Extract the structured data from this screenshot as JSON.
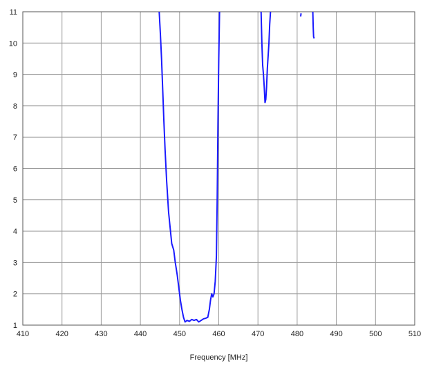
{
  "chart_data": {
    "type": "line",
    "title": "",
    "xlabel": "Frequency [MHz]",
    "ylabel": "",
    "xlim": [
      410,
      510
    ],
    "ylim": [
      1,
      11
    ],
    "xticks": [
      410,
      420,
      430,
      440,
      450,
      460,
      470,
      480,
      490,
      500,
      510
    ],
    "yticks": [
      1,
      2,
      3,
      4,
      5,
      6,
      7,
      8,
      9,
      10,
      11
    ],
    "grid": true,
    "legend": "none",
    "line_color": "#1a1aff",
    "series": [
      {
        "segments": [
          [
            [
              444.8,
              11.0
            ],
            [
              445.1,
              10.3
            ],
            [
              445.4,
              9.5
            ],
            [
              445.7,
              8.5
            ],
            [
              446.0,
              7.5
            ],
            [
              446.3,
              6.6
            ],
            [
              446.7,
              5.6
            ],
            [
              447.2,
              4.6
            ],
            [
              447.6,
              4.1
            ],
            [
              448.0,
              3.6
            ],
            [
              448.5,
              3.4
            ],
            [
              448.9,
              3.0
            ],
            [
              449.4,
              2.6
            ],
            [
              449.8,
              2.2
            ],
            [
              450.2,
              1.8
            ],
            [
              450.6,
              1.5
            ],
            [
              451.0,
              1.25
            ],
            [
              451.4,
              1.1
            ],
            [
              451.9,
              1.15
            ],
            [
              452.5,
              1.12
            ],
            [
              453.1,
              1.18
            ],
            [
              453.7,
              1.15
            ],
            [
              454.3,
              1.18
            ],
            [
              454.9,
              1.1
            ],
            [
              455.5,
              1.15
            ],
            [
              456.1,
              1.2
            ],
            [
              456.7,
              1.22
            ],
            [
              457.2,
              1.25
            ],
            [
              457.6,
              1.5
            ],
            [
              457.9,
              1.8
            ],
            [
              458.2,
              2.0
            ],
            [
              458.5,
              1.9
            ],
            [
              458.8,
              2.0
            ],
            [
              459.1,
              2.4
            ],
            [
              459.4,
              3.2
            ],
            [
              459.6,
              5.0
            ],
            [
              459.8,
              7.5
            ],
            [
              460.0,
              9.5
            ],
            [
              460.2,
              11.0
            ]
          ],
          [
            [
              470.8,
              11.0
            ],
            [
              470.9,
              10.5
            ],
            [
              471.0,
              10.0
            ],
            [
              471.2,
              9.3
            ],
            [
              471.4,
              9.0
            ],
            [
              471.6,
              8.6
            ],
            [
              471.8,
              8.1
            ],
            [
              472.0,
              8.2
            ],
            [
              472.2,
              8.6
            ],
            [
              472.4,
              9.2
            ],
            [
              472.6,
              9.6
            ],
            [
              472.8,
              10.0
            ],
            [
              473.0,
              10.6
            ],
            [
              473.2,
              11.0
            ]
          ],
          [
            [
              480.9,
              10.85
            ],
            [
              481.0,
              10.95
            ]
          ],
          [
            [
              484.0,
              11.0
            ],
            [
              484.1,
              10.5
            ],
            [
              484.2,
              10.2
            ],
            [
              484.35,
              10.15
            ]
          ]
        ]
      }
    ]
  }
}
